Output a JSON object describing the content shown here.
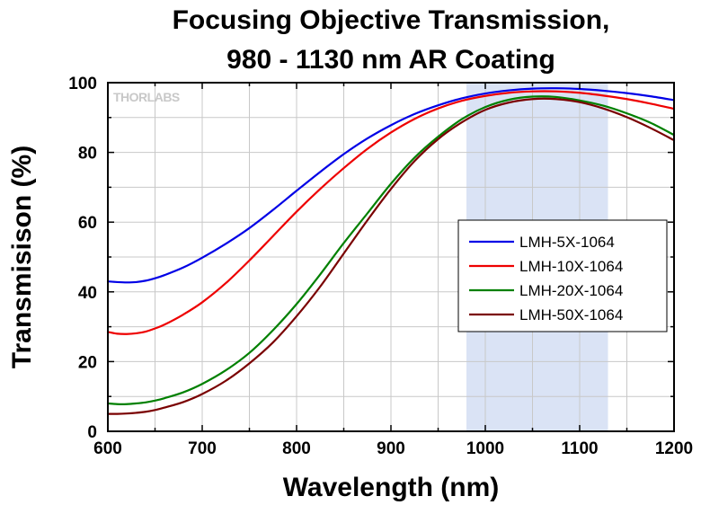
{
  "chart_data": {
    "type": "line",
    "title_line1": "Focusing Objective Transmission,",
    "title_line2": "980 - 1130 nm AR Coating",
    "xlabel": "Wavelength (nm)",
    "ylabel": "Transmisison (%)",
    "xlim": [
      600,
      1200
    ],
    "ylim": [
      0,
      100
    ],
    "x_major_ticks": [
      600,
      700,
      800,
      900,
      1000,
      1100,
      1200
    ],
    "y_major_ticks": [
      0,
      20,
      40,
      60,
      80,
      100
    ],
    "x_tick_labels": [
      "600",
      "700",
      "800",
      "900",
      "1000",
      "1100",
      "1200"
    ],
    "y_tick_labels": [
      "0",
      "20",
      "40",
      "60",
      "80",
      "100"
    ],
    "grid": true,
    "legend_position": "center-right",
    "watermark": "THORLABS",
    "shaded_band": {
      "x_start": 980,
      "x_end": 1130,
      "color": "#dae3f5"
    },
    "series": [
      {
        "name": "LMH-5X-1064",
        "color": "#0000e6",
        "x": [
          600,
          610,
          620,
          630,
          640,
          650,
          660,
          680,
          700,
          725,
          750,
          775,
          800,
          825,
          850,
          875,
          900,
          925,
          950,
          975,
          1000,
          1025,
          1050,
          1075,
          1100,
          1125,
          1150,
          1175,
          1200
        ],
        "y": [
          43.0,
          42.8,
          42.7,
          42.8,
          43.2,
          43.9,
          44.8,
          47.0,
          49.8,
          53.8,
          58.3,
          63.5,
          69.0,
          74.4,
          79.5,
          84.0,
          87.8,
          91.0,
          93.5,
          95.5,
          96.9,
          97.8,
          98.3,
          98.4,
          98.2,
          97.7,
          97.0,
          96.1,
          95.0
        ]
      },
      {
        "name": "LMH-10X-1064",
        "color": "#ee0000",
        "x": [
          600,
          610,
          620,
          630,
          640,
          650,
          660,
          680,
          700,
          725,
          750,
          775,
          800,
          825,
          850,
          875,
          900,
          925,
          950,
          975,
          1000,
          1025,
          1050,
          1075,
          1100,
          1125,
          1150,
          1175,
          1200
        ],
        "y": [
          28.5,
          28.0,
          27.9,
          28.1,
          28.6,
          29.5,
          30.6,
          33.5,
          37.0,
          42.5,
          49.0,
          56.0,
          63.0,
          69.5,
          75.5,
          81.0,
          85.7,
          89.6,
          92.6,
          94.8,
          96.2,
          97.1,
          97.5,
          97.5,
          97.1,
          96.3,
          95.3,
          94.0,
          92.5
        ]
      },
      {
        "name": "LMH-20X-1064",
        "color": "#008000",
        "x": [
          600,
          610,
          620,
          630,
          640,
          650,
          660,
          680,
          700,
          725,
          750,
          775,
          800,
          825,
          850,
          875,
          900,
          925,
          950,
          975,
          1000,
          1025,
          1050,
          1075,
          1100,
          1125,
          1150,
          1175,
          1200
        ],
        "y": [
          8.0,
          7.8,
          7.8,
          8.0,
          8.3,
          8.8,
          9.5,
          11.2,
          13.6,
          17.5,
          22.5,
          29.0,
          36.5,
          45.0,
          54.0,
          62.5,
          71.0,
          78.5,
          84.5,
          89.5,
          93.0,
          95.1,
          96.0,
          95.9,
          94.9,
          93.4,
          91.2,
          88.5,
          85.0
        ]
      },
      {
        "name": "LMH-50X-1064",
        "color": "#7a0000",
        "x": [
          600,
          610,
          620,
          630,
          640,
          650,
          660,
          680,
          700,
          725,
          750,
          775,
          800,
          825,
          850,
          875,
          900,
          925,
          950,
          975,
          1000,
          1025,
          1050,
          1075,
          1100,
          1125,
          1150,
          1175,
          1200
        ],
        "y": [
          5.0,
          5.0,
          5.1,
          5.3,
          5.6,
          6.1,
          6.8,
          8.4,
          10.7,
          14.5,
          19.5,
          25.5,
          33.0,
          41.5,
          51.0,
          60.5,
          69.5,
          77.5,
          83.8,
          88.6,
          92.2,
          94.3,
          95.3,
          95.3,
          94.4,
          92.6,
          90.1,
          87.0,
          83.5
        ]
      }
    ]
  }
}
